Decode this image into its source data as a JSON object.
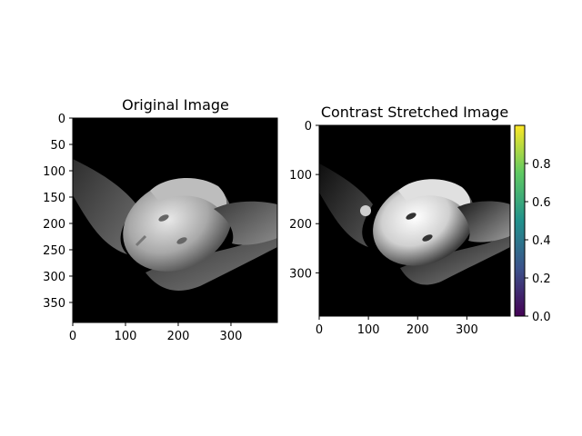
{
  "chart_data": [
    {
      "type": "image",
      "title": "Original Image",
      "image_description": "grayscale photo of hands holding a marble head",
      "x_ticks": [
        0,
        100,
        200,
        300
      ],
      "y_ticks": [
        0,
        50,
        100,
        150,
        200,
        250,
        300,
        350
      ],
      "xlim": [
        0,
        388
      ],
      "ylim": [
        388,
        0
      ]
    },
    {
      "type": "image",
      "title": "Contrast Stretched Image",
      "image_description": "higher-contrast version of the same photo",
      "x_ticks": [
        0,
        100,
        200,
        300
      ],
      "y_ticks": [
        0,
        100,
        200,
        300
      ],
      "xlim": [
        0,
        388
      ],
      "ylim": [
        388,
        0
      ],
      "colorbar": {
        "colormap": "viridis",
        "range": [
          0.0,
          1.0
        ],
        "ticks": [
          "0.0",
          "0.2",
          "0.4",
          "0.6",
          "0.8"
        ],
        "tick_values": [
          0.0,
          0.2,
          0.4,
          0.6,
          0.8
        ],
        "colors": [
          "#440154",
          "#3b528b",
          "#21918c",
          "#5ec962",
          "#fde725"
        ]
      }
    }
  ]
}
